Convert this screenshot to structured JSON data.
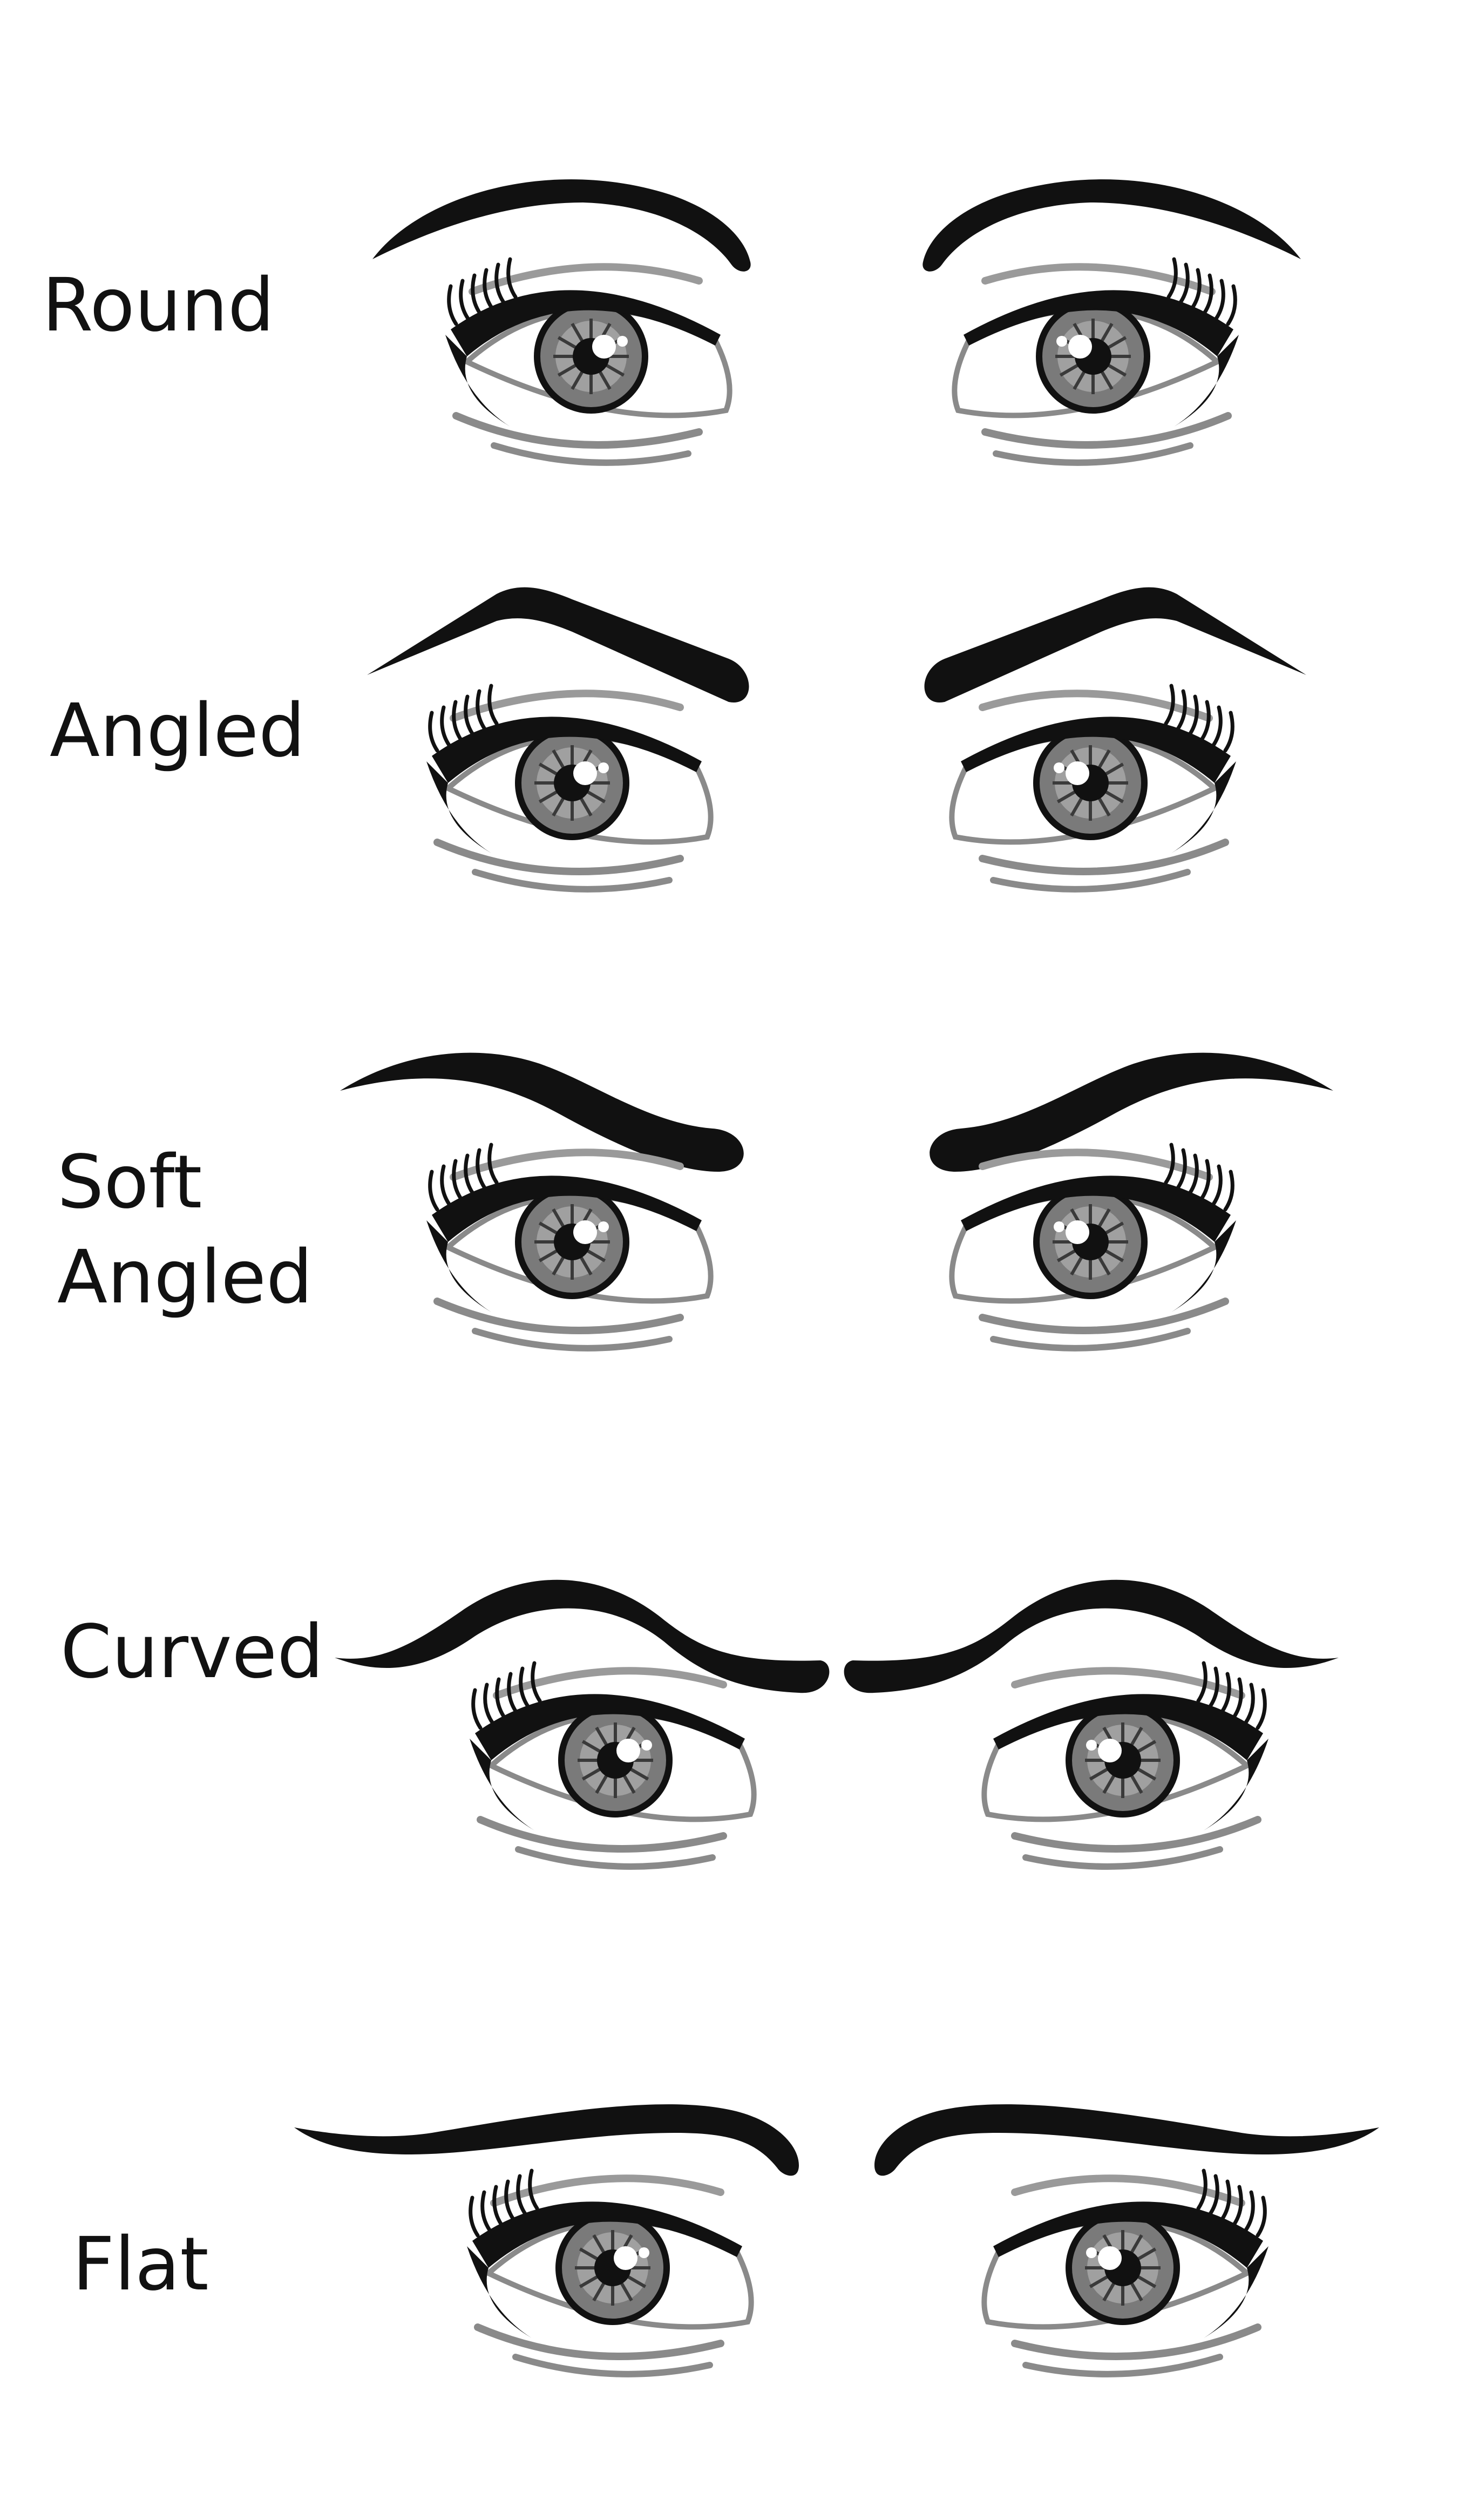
{
  "colors": {
    "background": "#ffffff",
    "ink": "#111111",
    "iris": "#7a7a7a",
    "iris_dark": "#3a3a3a",
    "shadow": "#8a8a8a",
    "lid_crease": "#9a9a9a"
  },
  "shapes": [
    {
      "id": "round",
      "label_lines": [
        "Round"
      ],
      "brow": "round"
    },
    {
      "id": "angled",
      "label_lines": [
        "Angled"
      ],
      "brow": "angled"
    },
    {
      "id": "soft-angled",
      "label_lines": [
        "Soft",
        "Angled"
      ],
      "brow": "soft-angled"
    },
    {
      "id": "curved",
      "label_lines": [
        "Curved"
      ],
      "brow": "curved"
    },
    {
      "id": "flat",
      "label_lines": [
        "Flat"
      ],
      "brow": "flat"
    }
  ]
}
